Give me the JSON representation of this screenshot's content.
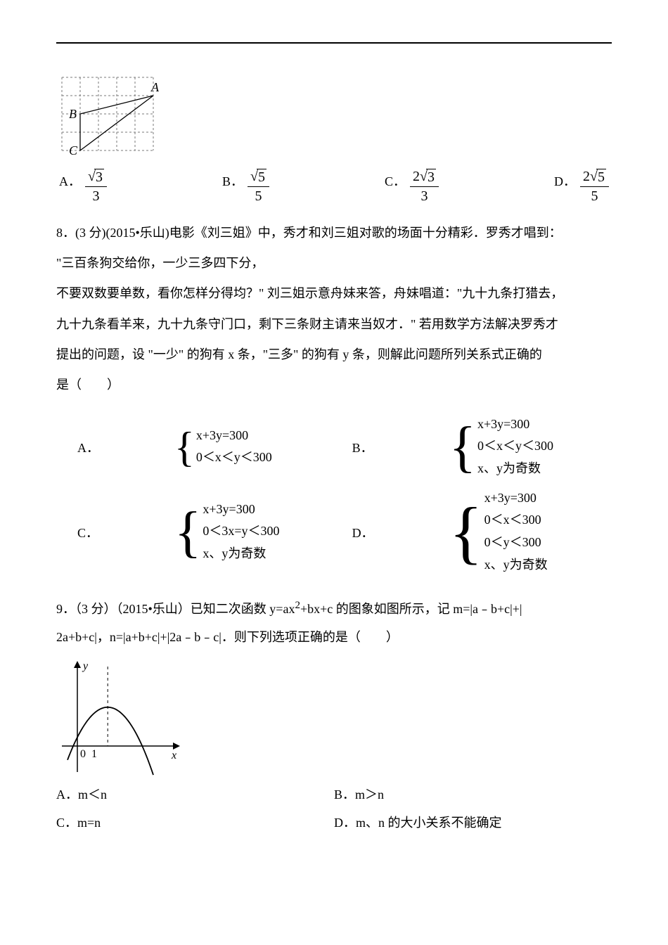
{
  "grid_figure": {
    "rows": 4,
    "cols": 5,
    "cell": 26,
    "stroke": "#7a7a7a",
    "dash": "3,3",
    "labels": {
      "A": "A",
      "B": "B",
      "C": "C"
    },
    "points": {
      "A": [
        5,
        1
      ],
      "B": [
        1,
        2
      ],
      "C": [
        1,
        4
      ]
    },
    "tri_stroke": "#000000",
    "tri_width": 1.3
  },
  "q7_choices": {
    "A": {
      "num_coef": "",
      "num_rad": "3",
      "den": "3"
    },
    "B": {
      "num_coef": "",
      "num_rad": "5",
      "den": "5"
    },
    "C": {
      "num_coef": "2",
      "num_rad": "3",
      "den": "3"
    },
    "D": {
      "num_coef": "2",
      "num_rad": "5",
      "den": "5"
    }
  },
  "q8": {
    "line1": "8．(3 分)(2015•乐山)电影《刘三姐》中，秀才和刘三姐对歌的场面十分精彩．罗秀才唱到：",
    "line2": "\"三百条狗交给你，一少三多四下分，",
    "line3": "不要双数要单数，看你怎样分得均？\" 刘三姐示意舟妹来答，舟妹唱道：\"九十九条打猎去，",
    "line4": "九十九条看羊来，九十九条守门口，剩下三条财主请来当奴才．\" 若用数学方法解决罗秀才",
    "line5": "提出的问题，设 \"一少\" 的狗有 x 条，\"三多\" 的狗有 y 条，则解此问题所列关系式正确的",
    "line6": "是（　　）",
    "labels": {
      "A": "A．",
      "B": "B．",
      "C": "C．",
      "D": "D．"
    },
    "sysA": [
      "x+3y=300",
      "0＜x＜y＜300"
    ],
    "sysB": [
      "x+3y=300",
      "0＜x＜y＜300",
      "x、y为奇数"
    ],
    "sysC": [
      "x+3y=300",
      "0＜3x=y＜300",
      "x、y为奇数"
    ],
    "sysD": [
      "x+3y=300",
      "0＜x＜300",
      "0＜y＜300",
      "x、y为奇数"
    ]
  },
  "q9": {
    "line1_a": "9．（3 分）（2015•乐山）已知二次函数 y=ax",
    "line1_b": "+bx+c 的图象如图所示，记 m=|a﹣b+c|+|",
    "sup": "2",
    "line2": "2a+b+c|，n=|a+b+c|+|2a﹣b﹣c|．则下列选项正确的是（　　）",
    "choices": {
      "A": "A．m＜n",
      "B": "B．m＞n",
      "C": "C．m=n",
      "D": "D．m、n 的大小关系不能确定"
    },
    "graph": {
      "width": 180,
      "height": 170,
      "axis_color": "#000000",
      "curve_color": "#000000",
      "dash_color": "#000000",
      "labels": {
        "y": "y",
        "x": "x",
        "O": "0",
        "one": "1"
      }
    }
  }
}
